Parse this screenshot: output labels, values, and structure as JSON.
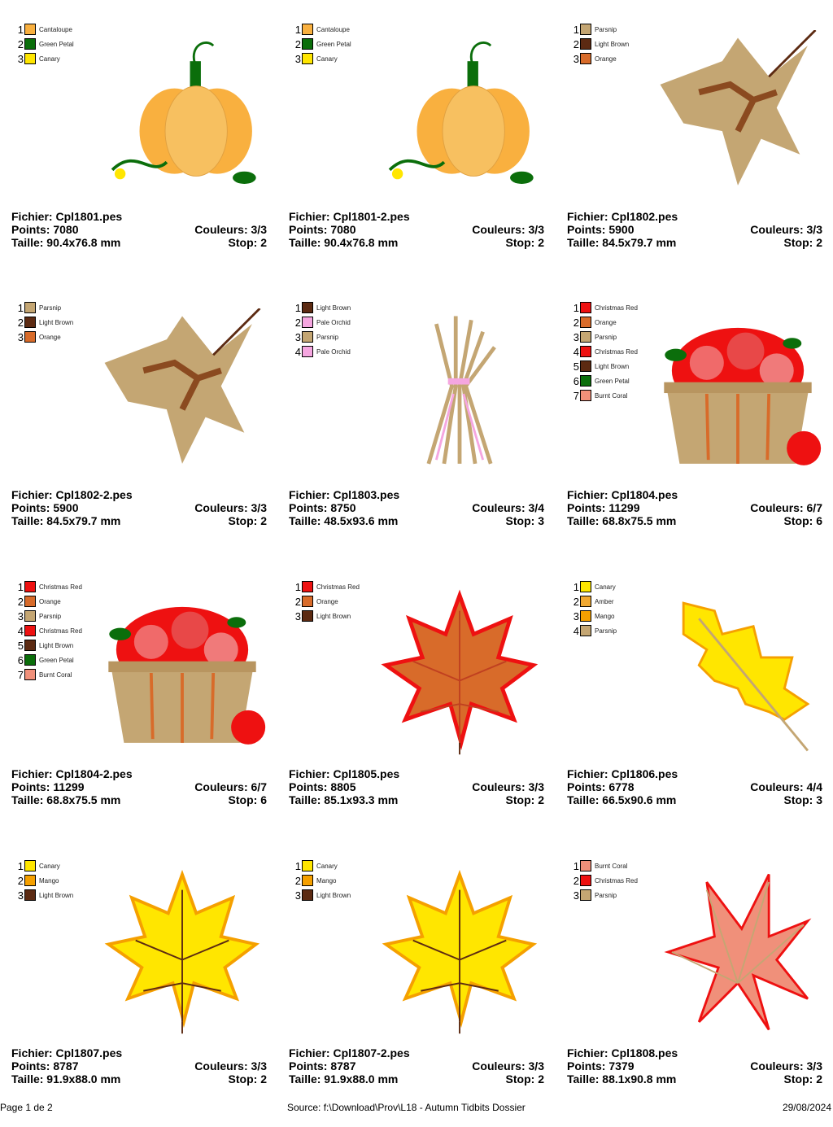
{
  "colors": {
    "Cantaloupe": "#F9B03F",
    "Green Petal": "#0B6E0B",
    "Canary": "#FFE600",
    "Parsnip": "#C4A673",
    "Light Brown": "#5C2A12",
    "Orange": "#D86B2A",
    "Pale Orchid": "#F5A6E0",
    "Christmas Red": "#EE1111",
    "Burnt Coral": "#F0907A",
    "Amber": "#F0A830",
    "Mango": "#F5A000"
  },
  "designs": [
    {
      "file": "Fichier: Cpl1801.pes",
      "points": "Points: 7080",
      "colors_count": "Couleurs: 3/3",
      "size": "Taille: 90.4x76.8 mm",
      "stops": "Stop: 2",
      "art": "pumpkin",
      "palette": [
        "Cantaloupe",
        "Green Petal",
        "Canary"
      ]
    },
    {
      "file": "Fichier: Cpl1801-2.pes",
      "points": "Points: 7080",
      "colors_count": "Couleurs: 3/3",
      "size": "Taille: 90.4x76.8 mm",
      "stops": "Stop: 2",
      "art": "pumpkin",
      "palette": [
        "Cantaloupe",
        "Green Petal",
        "Canary"
      ]
    },
    {
      "file": "Fichier: Cpl1802.pes",
      "points": "Points: 5900",
      "colors_count": "Couleurs: 3/3",
      "size": "Taille: 84.5x79.7 mm",
      "stops": "Stop: 2",
      "art": "leaf-tan",
      "palette": [
        "Parsnip",
        "Light Brown",
        "Orange"
      ]
    },
    {
      "file": "Fichier: Cpl1802-2.pes",
      "points": "Points: 5900",
      "colors_count": "Couleurs: 3/3",
      "size": "Taille: 84.5x79.7 mm",
      "stops": "Stop: 2",
      "art": "leaf-tan",
      "palette": [
        "Parsnip",
        "Light Brown",
        "Orange"
      ]
    },
    {
      "file": "Fichier: Cpl1803.pes",
      "points": "Points: 8750",
      "colors_count": "Couleurs: 3/4",
      "size": "Taille: 48.5x93.6 mm",
      "stops": "Stop: 3",
      "art": "wheat",
      "palette": [
        "Light Brown",
        "Pale Orchid",
        "Parsnip",
        "Pale Orchid"
      ]
    },
    {
      "file": "Fichier: Cpl1804.pes",
      "points": "Points: 11299",
      "colors_count": "Couleurs: 6/7",
      "size": "Taille: 68.8x75.5 mm",
      "stops": "Stop: 6",
      "art": "basket",
      "palette": [
        "Christmas Red",
        "Orange",
        "Parsnip",
        "Christmas Red",
        "Light Brown",
        "Green Petal",
        "Burnt Coral"
      ]
    },
    {
      "file": "Fichier: Cpl1804-2.pes",
      "points": "Points: 11299",
      "colors_count": "Couleurs: 6/7",
      "size": "Taille: 68.8x75.5 mm",
      "stops": "Stop: 6",
      "art": "basket",
      "palette": [
        "Christmas Red",
        "Orange",
        "Parsnip",
        "Christmas Red",
        "Light Brown",
        "Green Petal",
        "Burnt Coral"
      ]
    },
    {
      "file": "Fichier: Cpl1805.pes",
      "points": "Points: 8805",
      "colors_count": "Couleurs: 3/3",
      "size": "Taille: 85.1x93.3 mm",
      "stops": "Stop: 2",
      "art": "leaf-red",
      "palette": [
        "Christmas Red",
        "Orange",
        "Light Brown"
      ]
    },
    {
      "file": "Fichier: Cpl1806.pes",
      "points": "Points: 6778",
      "colors_count": "Couleurs: 4/4",
      "size": "Taille: 66.5x90.6 mm",
      "stops": "Stop: 3",
      "art": "leaf-oak",
      "palette": [
        "Canary",
        "Amber",
        "Mango",
        "Parsnip"
      ]
    },
    {
      "file": "Fichier: Cpl1807.pes",
      "points": "Points: 8787",
      "colors_count": "Couleurs: 3/3",
      "size": "Taille: 91.9x88.0 mm",
      "stops": "Stop: 2",
      "art": "leaf-yellow",
      "palette": [
        "Canary",
        "Mango",
        "Light Brown"
      ]
    },
    {
      "file": "Fichier: Cpl1807-2.pes",
      "points": "Points: 8787",
      "colors_count": "Couleurs: 3/3",
      "size": "Taille: 91.9x88.0 mm",
      "stops": "Stop: 2",
      "art": "leaf-yellow",
      "palette": [
        "Canary",
        "Mango",
        "Light Brown"
      ]
    },
    {
      "file": "Fichier: Cpl1808.pes",
      "points": "Points: 7379",
      "colors_count": "Couleurs: 3/3",
      "size": "Taille: 88.1x90.8 mm",
      "stops": "Stop: 2",
      "art": "leaf-coral",
      "palette": [
        "Burnt Coral",
        "Christmas Red",
        "Parsnip"
      ]
    }
  ],
  "footer": {
    "page": "Page 1 de 2",
    "source": "Source: f:\\Download\\Prov\\L18 - Autumn Tidbits Dossier",
    "date": "29/08/2024"
  }
}
